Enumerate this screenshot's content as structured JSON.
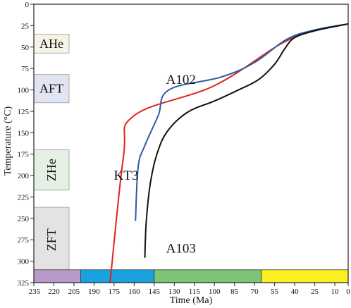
{
  "chart_data": {
    "type": "line",
    "xlabel": "Time (Ma)",
    "ylabel": "Temperature (°C)",
    "xlim": [
      235,
      0
    ],
    "ylim": [
      0,
      325
    ],
    "x_ticks": [
      235,
      220,
      205,
      190,
      175,
      160,
      145,
      130,
      115,
      100,
      85,
      70,
      55,
      40,
      25,
      10,
      0
    ],
    "y_ticks": [
      0,
      25,
      50,
      75,
      100,
      125,
      150,
      175,
      200,
      225,
      250,
      275,
      300,
      325
    ],
    "series": [
      {
        "name": "KT3",
        "color": "#e0231b",
        "label_at": [
          166,
          205
        ],
        "points": [
          [
            178,
            325
          ],
          [
            168,
            178
          ],
          [
            160,
            130
          ],
          [
            100,
            95
          ],
          [
            50,
            46
          ],
          [
            25,
            31
          ],
          [
            0,
            23
          ]
        ]
      },
      {
        "name": "A102",
        "color": "#2b5ba8",
        "label_at": [
          125,
          93
        ],
        "points": [
          [
            159,
            253
          ],
          [
            157,
            190
          ],
          [
            152,
            165
          ],
          [
            142,
            130
          ],
          [
            134,
            100
          ],
          [
            95,
            85
          ],
          [
            70,
            68
          ],
          [
            46,
            41
          ],
          [
            25,
            30
          ],
          [
            0,
            23
          ]
        ]
      },
      {
        "name": "A103",
        "color": "#111111",
        "label_at": [
          125,
          290
        ],
        "points": [
          [
            152,
            296
          ],
          [
            151,
            255
          ],
          [
            148,
            210
          ],
          [
            143,
            175
          ],
          [
            135,
            148
          ],
          [
            120,
            126
          ],
          [
            100,
            113
          ],
          [
            82,
            100
          ],
          [
            67,
            88
          ],
          [
            55,
            70
          ],
          [
            47,
            51
          ],
          [
            40,
            39
          ],
          [
            25,
            31
          ],
          [
            0,
            23
          ]
        ]
      }
    ],
    "zones": [
      {
        "label": "AHe",
        "color": "#f6f4e4",
        "yrange": [
          35,
          57
        ]
      },
      {
        "label": "AFT",
        "color": "#e1e5f3",
        "yrange": [
          82,
          115
        ]
      },
      {
        "label": "ZHe",
        "color": "#e4f0e4",
        "yrange": [
          170,
          217
        ]
      },
      {
        "label": "ZFT",
        "color": "#e3e3e3",
        "yrange": [
          237,
          313
        ]
      }
    ],
    "time_bar": [
      {
        "from": 235,
        "to": 200,
        "color": "#b79ac9"
      },
      {
        "from": 200,
        "to": 145,
        "color": "#1aa1e0"
      },
      {
        "from": 145,
        "to": 65,
        "color": "#7cc576"
      },
      {
        "from": 65,
        "to": 0,
        "color": "#fcee21"
      }
    ]
  }
}
